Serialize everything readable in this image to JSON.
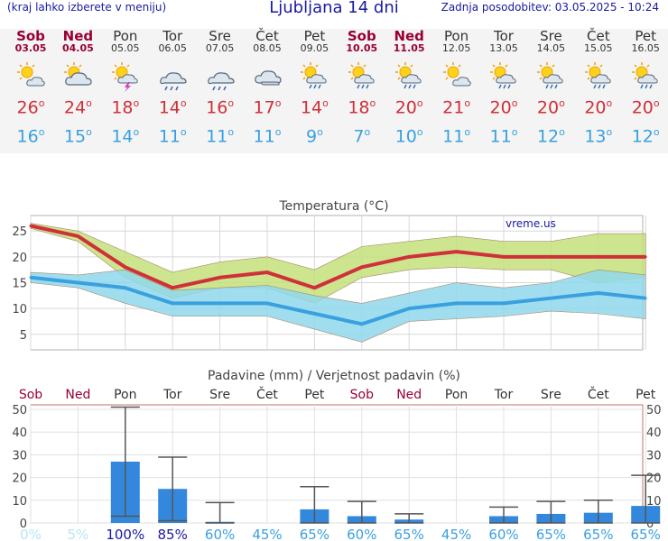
{
  "header": {
    "left_note": "(kraj lahko izberete v meniju)",
    "title": "Ljubljana 14 dni",
    "updated": "Zadnja posodobitev: 03.05.2025 - 10:24"
  },
  "days": [
    {
      "name": "Sob",
      "date": "03.05",
      "weekend": true,
      "icon": "sun-cloud-icon",
      "max": "26",
      "min": "16"
    },
    {
      "name": "Ned",
      "date": "04.05",
      "weekend": true,
      "icon": "cloud-sun-icon",
      "max": "24",
      "min": "15"
    },
    {
      "name": "Pon",
      "date": "05.05",
      "weekend": false,
      "icon": "sun-thunder-icon",
      "max": "18",
      "min": "14"
    },
    {
      "name": "Tor",
      "date": "06.05",
      "weekend": false,
      "icon": "rain-cloud-icon",
      "max": "14",
      "min": "11"
    },
    {
      "name": "Sre",
      "date": "07.05",
      "weekend": false,
      "icon": "rain-cloud-icon",
      "max": "16",
      "min": "11"
    },
    {
      "name": "Čet",
      "date": "08.05",
      "weekend": false,
      "icon": "cloud-icon",
      "max": "17",
      "min": "11"
    },
    {
      "name": "Pet",
      "date": "09.05",
      "weekend": false,
      "icon": "sun-rain-icon",
      "max": "14",
      "min": "9"
    },
    {
      "name": "Sob",
      "date": "10.05",
      "weekend": true,
      "icon": "sun-rain-icon",
      "max": "18",
      "min": "7"
    },
    {
      "name": "Ned",
      "date": "11.05",
      "weekend": true,
      "icon": "sun-rain-icon",
      "max": "20",
      "min": "10"
    },
    {
      "name": "Pon",
      "date": "12.05",
      "weekend": false,
      "icon": "sun-cloud-icon",
      "max": "21",
      "min": "11"
    },
    {
      "name": "Tor",
      "date": "13.05",
      "weekend": false,
      "icon": "sun-rain-icon",
      "max": "20",
      "min": "11"
    },
    {
      "name": "Sre",
      "date": "14.05",
      "weekend": false,
      "icon": "sun-rain-icon",
      "max": "20",
      "min": "12"
    },
    {
      "name": "Čet",
      "date": "15.05",
      "weekend": false,
      "icon": "sun-rain-icon",
      "max": "20",
      "min": "13"
    },
    {
      "name": "Pet",
      "date": "16.05",
      "weekend": false,
      "icon": "sun-rain-icon",
      "max": "20",
      "min": "12"
    }
  ],
  "chart_data": [
    {
      "type": "line",
      "title": "Temperatura (°C)",
      "watermark": "vreme.us",
      "categories": [
        "03.05",
        "04.05",
        "05.05",
        "06.05",
        "07.05",
        "08.05",
        "09.05",
        "10.05",
        "11.05",
        "12.05",
        "13.05",
        "14.05",
        "15.05",
        "16.05"
      ],
      "ylim": [
        2,
        28
      ],
      "yticks": [
        5,
        10,
        15,
        20,
        25
      ],
      "grid": true,
      "series": [
        {
          "role": "max",
          "color": "#d0303a",
          "values": [
            26,
            24,
            18,
            14,
            16,
            17,
            14,
            18,
            20,
            21,
            20,
            20,
            20,
            20
          ]
        },
        {
          "role": "min",
          "color": "#3aa0e0",
          "values": [
            16,
            15,
            14,
            11,
            11,
            11,
            9,
            7,
            10,
            11,
            11,
            12,
            13,
            12
          ]
        },
        {
          "role": "max-band",
          "color": "#c4e07a",
          "upper": [
            26.5,
            25,
            21,
            17,
            19,
            20,
            17.5,
            22,
            23,
            24,
            23,
            23,
            24.5,
            24.5
          ],
          "lower": [
            25.5,
            23,
            16,
            12,
            14,
            14,
            11,
            16,
            17.5,
            18,
            17.5,
            17.5,
            15,
            16
          ]
        },
        {
          "role": "min-band",
          "color": "#8fd8ec",
          "upper": [
            17,
            16.5,
            17.5,
            13.5,
            14,
            14.5,
            12.5,
            11,
            13,
            15,
            14,
            15,
            17.5,
            16.5
          ],
          "lower": [
            15,
            14,
            11,
            8.5,
            8.5,
            8.5,
            6,
            3.5,
            7.5,
            8,
            8.5,
            9.5,
            9,
            8
          ]
        }
      ]
    },
    {
      "type": "bar",
      "title": "Padavine (mm) / Verjetnost padavin (%)",
      "categories": [
        "Sob",
        "Ned",
        "Pon",
        "Tor",
        "Sre",
        "Čet",
        "Pet",
        "Sob",
        "Ned",
        "Pon",
        "Tor",
        "Sre",
        "Čet",
        "Pet"
      ],
      "weekend": [
        true,
        true,
        false,
        false,
        false,
        false,
        false,
        true,
        true,
        false,
        false,
        false,
        false,
        false
      ],
      "values": [
        0,
        0,
        27,
        15,
        0.5,
        0,
        6,
        3,
        1.5,
        0,
        3,
        4,
        4.5,
        7.5
      ],
      "err_low": [
        0,
        0,
        3,
        1,
        0,
        0,
        0,
        0,
        0,
        0,
        0,
        0,
        0,
        0
      ],
      "err_high": [
        0,
        0,
        51,
        29,
        9,
        0,
        16,
        9.5,
        4,
        0,
        7,
        9.5,
        10,
        21
      ],
      "probability": [
        "0%",
        "5%",
        "100%",
        "85%",
        "60%",
        "45%",
        "65%",
        "60%",
        "65%",
        "45%",
        "60%",
        "65%",
        "65%",
        "65%"
      ],
      "probability_colors": [
        "#b8e4f8",
        "#b8e4f8",
        "#1a1aa0",
        "#1a1aa0",
        "#3aa0e0",
        "#3aa0e0",
        "#3aa0e0",
        "#3aa0e0",
        "#3aa0e0",
        "#3aa0e0",
        "#3aa0e0",
        "#3aa0e0",
        "#3aa0e0",
        "#3aa0e0"
      ],
      "ylim": [
        0,
        52
      ],
      "yticks": [
        0,
        10,
        20,
        30,
        40,
        50
      ],
      "bar_color": "#3388dd",
      "grid": true
    }
  ]
}
